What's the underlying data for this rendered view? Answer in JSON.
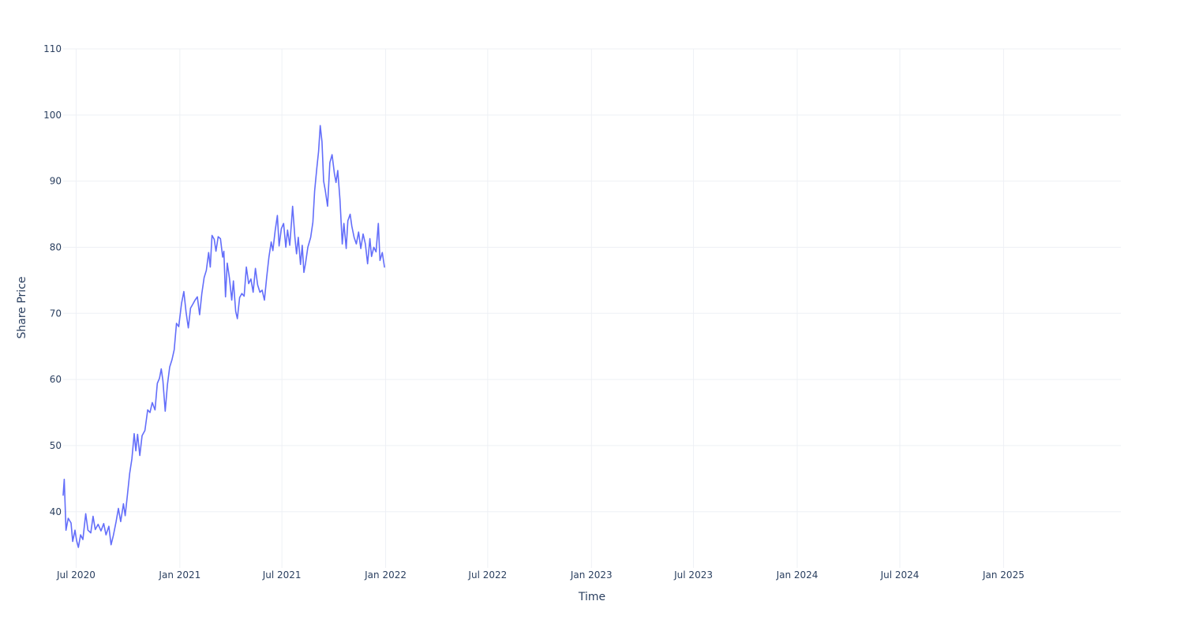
{
  "chart_data": {
    "type": "line",
    "title": "",
    "xlabel": "Time",
    "ylabel": "Share Price",
    "x_range": [
      "2020-06-08",
      "2025-07-28"
    ],
    "ylim": [
      31.5,
      110
    ],
    "grid": true,
    "legend": "none",
    "x_ticks": [
      {
        "date": "2020-07-01",
        "label": "Jul 2020"
      },
      {
        "date": "2021-01-01",
        "label": "Jan 2021"
      },
      {
        "date": "2021-07-01",
        "label": "Jul 2021"
      },
      {
        "date": "2022-01-01",
        "label": "Jan 2022"
      },
      {
        "date": "2022-07-01",
        "label": "Jul 2022"
      },
      {
        "date": "2023-01-01",
        "label": "Jan 2023"
      },
      {
        "date": "2023-07-01",
        "label": "Jul 2023"
      },
      {
        "date": "2024-01-01",
        "label": "Jan 2024"
      },
      {
        "date": "2024-07-01",
        "label": "Jul 2024"
      },
      {
        "date": "2025-01-01",
        "label": "Jan 2025"
      }
    ],
    "y_ticks": [
      40,
      50,
      60,
      70,
      80,
      90,
      100,
      110
    ],
    "series": [
      {
        "color": "#636efa",
        "points": [
          [
            "2020-06-08",
            42.5
          ],
          [
            "2020-06-10",
            44.9
          ],
          [
            "2020-06-13",
            37.2
          ],
          [
            "2020-06-17",
            39.0
          ],
          [
            "2020-06-22",
            38.3
          ],
          [
            "2020-06-25",
            35.5
          ],
          [
            "2020-06-29",
            37.2
          ],
          [
            "2020-07-02",
            35.6
          ],
          [
            "2020-07-05",
            34.6
          ],
          [
            "2020-07-09",
            36.5
          ],
          [
            "2020-07-13",
            35.8
          ],
          [
            "2020-07-18",
            39.7
          ],
          [
            "2020-07-22",
            37.2
          ],
          [
            "2020-07-27",
            36.8
          ],
          [
            "2020-07-31",
            39.3
          ],
          [
            "2020-08-04",
            37.3
          ],
          [
            "2020-08-09",
            38.1
          ],
          [
            "2020-08-14",
            37.1
          ],
          [
            "2020-08-19",
            38.2
          ],
          [
            "2020-08-23",
            36.5
          ],
          [
            "2020-08-28",
            37.8
          ],
          [
            "2020-09-01",
            35.0
          ],
          [
            "2020-09-05",
            36.4
          ],
          [
            "2020-09-10",
            38.5
          ],
          [
            "2020-09-14",
            40.5
          ],
          [
            "2020-09-18",
            38.5
          ],
          [
            "2020-09-23",
            41.2
          ],
          [
            "2020-09-26",
            39.4
          ],
          [
            "2020-09-30",
            42.5
          ],
          [
            "2020-10-04",
            45.8
          ],
          [
            "2020-10-08",
            48.0
          ],
          [
            "2020-10-12",
            51.8
          ],
          [
            "2020-10-15",
            49.2
          ],
          [
            "2020-10-18",
            51.7
          ],
          [
            "2020-10-22",
            48.5
          ],
          [
            "2020-10-26",
            51.5
          ],
          [
            "2020-10-31",
            52.3
          ],
          [
            "2020-11-05",
            55.4
          ],
          [
            "2020-11-09",
            55.0
          ],
          [
            "2020-11-13",
            56.5
          ],
          [
            "2020-11-18",
            55.4
          ],
          [
            "2020-11-22",
            59.4
          ],
          [
            "2020-11-26",
            60.2
          ],
          [
            "2020-11-29",
            61.6
          ],
          [
            "2020-12-02",
            59.8
          ],
          [
            "2020-12-06",
            55.2
          ],
          [
            "2020-12-10",
            59.2
          ],
          [
            "2020-12-14",
            61.9
          ],
          [
            "2020-12-18",
            63.0
          ],
          [
            "2020-12-22",
            64.5
          ],
          [
            "2020-12-26",
            68.5
          ],
          [
            "2020-12-30",
            68.0
          ],
          [
            "2021-01-04",
            71.5
          ],
          [
            "2021-01-08",
            73.3
          ],
          [
            "2021-01-12",
            70.2
          ],
          [
            "2021-01-16",
            67.8
          ],
          [
            "2021-01-20",
            70.8
          ],
          [
            "2021-01-24",
            71.4
          ],
          [
            "2021-01-28",
            72.0
          ],
          [
            "2021-02-01",
            72.5
          ],
          [
            "2021-02-05",
            69.8
          ],
          [
            "2021-02-09",
            73.0
          ],
          [
            "2021-02-13",
            75.4
          ],
          [
            "2021-02-17",
            76.5
          ],
          [
            "2021-02-21",
            79.2
          ],
          [
            "2021-02-24",
            77.0
          ],
          [
            "2021-02-27",
            81.8
          ],
          [
            "2021-03-03",
            81.2
          ],
          [
            "2021-03-06",
            79.4
          ],
          [
            "2021-03-10",
            81.6
          ],
          [
            "2021-03-14",
            81.3
          ],
          [
            "2021-03-18",
            78.5
          ],
          [
            "2021-03-20",
            79.4
          ],
          [
            "2021-03-23",
            72.5
          ],
          [
            "2021-03-26",
            77.6
          ],
          [
            "2021-03-30",
            75.3
          ],
          [
            "2021-04-03",
            72.0
          ],
          [
            "2021-04-06",
            74.9
          ],
          [
            "2021-04-10",
            70.3
          ],
          [
            "2021-04-13",
            69.2
          ],
          [
            "2021-04-17",
            72.4
          ],
          [
            "2021-04-21",
            73.0
          ],
          [
            "2021-04-25",
            72.6
          ],
          [
            "2021-04-29",
            77.0
          ],
          [
            "2021-05-03",
            74.5
          ],
          [
            "2021-05-07",
            75.2
          ],
          [
            "2021-05-11",
            73.2
          ],
          [
            "2021-05-15",
            76.8
          ],
          [
            "2021-05-19",
            74.3
          ],
          [
            "2021-05-23",
            73.2
          ],
          [
            "2021-05-27",
            73.5
          ],
          [
            "2021-05-31",
            72.0
          ],
          [
            "2021-06-04",
            75.5
          ],
          [
            "2021-06-08",
            78.5
          ],
          [
            "2021-06-12",
            80.8
          ],
          [
            "2021-06-15",
            79.5
          ],
          [
            "2021-06-19",
            82.5
          ],
          [
            "2021-06-23",
            84.8
          ],
          [
            "2021-06-26",
            80.2
          ],
          [
            "2021-06-30",
            82.8
          ],
          [
            "2021-07-04",
            83.6
          ],
          [
            "2021-07-08",
            80.0
          ],
          [
            "2021-07-11",
            82.6
          ],
          [
            "2021-07-15",
            80.3
          ],
          [
            "2021-07-18",
            83.8
          ],
          [
            "2021-07-20",
            86.2
          ],
          [
            "2021-07-24",
            81.5
          ],
          [
            "2021-07-27",
            79.0
          ],
          [
            "2021-07-30",
            81.5
          ],
          [
            "2021-08-03",
            77.4
          ],
          [
            "2021-08-06",
            80.3
          ],
          [
            "2021-08-09",
            76.2
          ],
          [
            "2021-08-12",
            77.6
          ],
          [
            "2021-08-16",
            80.0
          ],
          [
            "2021-08-21",
            81.5
          ],
          [
            "2021-08-25",
            83.8
          ],
          [
            "2021-08-28",
            88.5
          ],
          [
            "2021-09-01",
            92.0
          ],
          [
            "2021-09-04",
            94.5
          ],
          [
            "2021-09-07",
            98.4
          ],
          [
            "2021-09-10",
            96.0
          ],
          [
            "2021-09-13",
            90.0
          ],
          [
            "2021-09-16",
            88.6
          ],
          [
            "2021-09-20",
            86.2
          ],
          [
            "2021-09-24",
            92.8
          ],
          [
            "2021-09-28",
            94.0
          ],
          [
            "2021-10-02",
            91.2
          ],
          [
            "2021-10-05",
            89.8
          ],
          [
            "2021-10-08",
            91.6
          ],
          [
            "2021-10-12",
            87.2
          ],
          [
            "2021-10-16",
            80.5
          ],
          [
            "2021-10-19",
            83.6
          ],
          [
            "2021-10-23",
            79.8
          ],
          [
            "2021-10-26",
            84.0
          ],
          [
            "2021-10-30",
            85.0
          ],
          [
            "2021-11-02",
            83.2
          ],
          [
            "2021-11-06",
            81.5
          ],
          [
            "2021-11-10",
            80.5
          ],
          [
            "2021-11-14",
            82.3
          ],
          [
            "2021-11-18",
            79.8
          ],
          [
            "2021-11-22",
            82.0
          ],
          [
            "2021-11-26",
            80.5
          ],
          [
            "2021-11-30",
            77.5
          ],
          [
            "2021-12-04",
            81.3
          ],
          [
            "2021-12-07",
            78.6
          ],
          [
            "2021-12-11",
            80.0
          ],
          [
            "2021-12-15",
            79.3
          ],
          [
            "2021-12-19",
            83.6
          ],
          [
            "2021-12-22",
            78.0
          ],
          [
            "2021-12-26",
            79.2
          ],
          [
            "2021-12-30",
            77.0
          ]
        ]
      }
    ]
  }
}
